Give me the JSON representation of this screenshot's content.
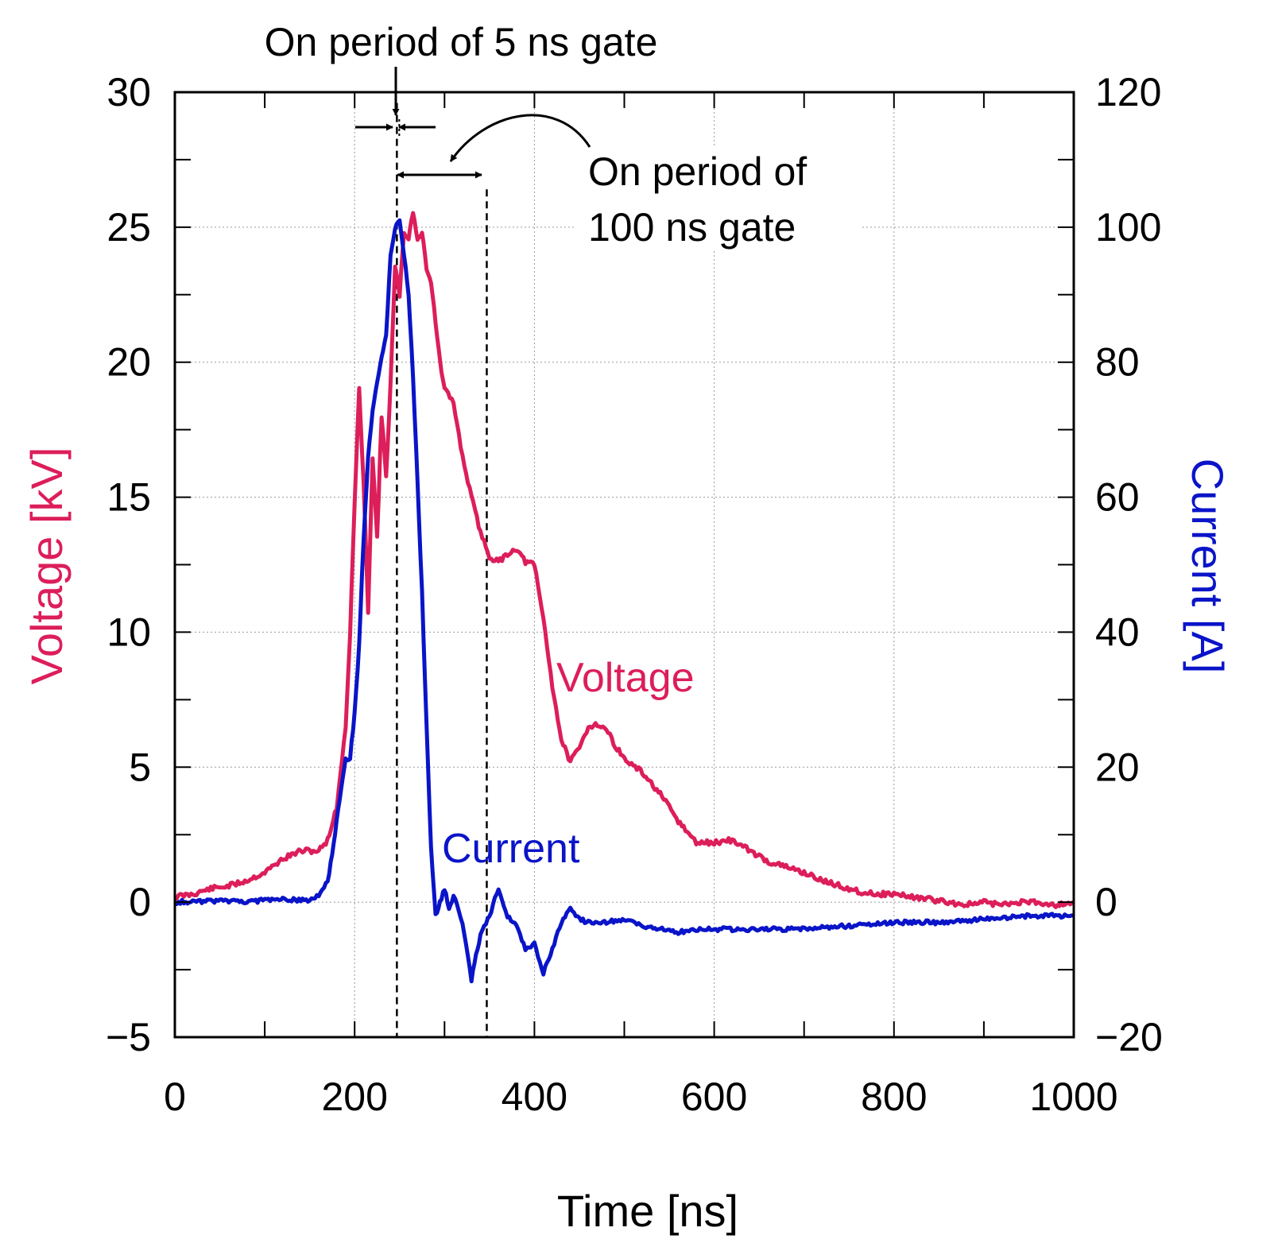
{
  "chart_data": {
    "type": "line",
    "title": "",
    "xlabel": "Time [ns]",
    "ylabel_left": "Voltage [kV]",
    "ylabel_right": "Current [A]",
    "xlim": [
      0,
      1000
    ],
    "ylim_left": [
      -5,
      30
    ],
    "ylim_right": [
      -20,
      120
    ],
    "x_ticks": [
      0,
      200,
      400,
      600,
      800,
      1000
    ],
    "x_tick_labels": [
      "0",
      "200",
      "400",
      "600",
      "800",
      "1000"
    ],
    "y_left_ticks": [
      -5,
      0,
      5,
      10,
      15,
      20,
      25,
      30
    ],
    "y_left_tick_labels": [
      "−5",
      "0",
      "5",
      "10",
      "15",
      "20",
      "25",
      "30"
    ],
    "y_right_ticks": [
      -20,
      0,
      20,
      40,
      60,
      80,
      100,
      120
    ],
    "y_right_tick_labels": [
      "−20",
      "0",
      "20",
      "40",
      "60",
      "80",
      "100",
      "120"
    ],
    "grid": true,
    "colors": {
      "voltage": "#dc1e5a",
      "current": "#0a14c8",
      "axis": "#000000"
    },
    "series": [
      {
        "name": "Voltage",
        "axis": "left",
        "x": [
          0,
          20,
          40,
          60,
          80,
          100,
          120,
          140,
          160,
          170,
          180,
          190,
          195,
          200,
          205,
          210,
          215,
          220,
          225,
          230,
          235,
          240,
          245,
          250,
          255,
          260,
          265,
          270,
          275,
          280,
          285,
          290,
          295,
          300,
          310,
          320,
          330,
          340,
          350,
          360,
          370,
          380,
          390,
          400,
          410,
          420,
          430,
          440,
          450,
          460,
          470,
          480,
          490,
          500,
          520,
          540,
          560,
          580,
          600,
          620,
          640,
          660,
          680,
          700,
          720,
          740,
          760,
          780,
          800,
          820,
          840,
          860,
          880,
          900,
          920,
          940,
          960,
          980,
          1000
        ],
        "values": [
          0.2,
          0.3,
          0.5,
          0.6,
          0.8,
          1.1,
          1.6,
          1.9,
          1.9,
          2.3,
          3.5,
          6.5,
          10.0,
          14.8,
          19.0,
          15.5,
          10.8,
          16.5,
          13.5,
          18.0,
          15.8,
          19.2,
          23.5,
          22.5,
          24.8,
          24.6,
          25.6,
          24.5,
          24.8,
          23.5,
          23.0,
          21.5,
          20.0,
          19.0,
          18.5,
          16.5,
          15.0,
          13.7,
          12.8,
          12.6,
          12.9,
          13.1,
          12.6,
          12.5,
          10.5,
          8.0,
          6.0,
          5.2,
          5.7,
          6.5,
          6.6,
          6.4,
          5.8,
          5.3,
          4.8,
          4.0,
          3.0,
          2.2,
          2.2,
          2.3,
          1.9,
          1.5,
          1.3,
          1.1,
          0.8,
          0.6,
          0.4,
          0.3,
          0.3,
          0.2,
          0.1,
          0.0,
          -0.1,
          0.0,
          -0.1,
          0.0,
          0.0,
          -0.1,
          0.0
        ]
      },
      {
        "name": "Current",
        "axis": "right",
        "x": [
          0,
          40,
          80,
          120,
          150,
          160,
          170,
          175,
          180,
          185,
          190,
          195,
          200,
          205,
          210,
          215,
          220,
          225,
          230,
          235,
          240,
          245,
          250,
          255,
          260,
          265,
          270,
          275,
          280,
          285,
          290,
          295,
          300,
          305,
          310,
          320,
          330,
          335,
          340,
          350,
          360,
          370,
          380,
          390,
          400,
          410,
          420,
          430,
          440,
          450,
          460,
          480,
          500,
          520,
          540,
          560,
          580,
          600,
          650,
          700,
          750,
          800,
          850,
          900,
          950,
          1000
        ],
        "values": [
          0,
          0.2,
          0.1,
          0.4,
          0.3,
          1.0,
          3.0,
          7.0,
          12.0,
          17.0,
          21.0,
          21.5,
          28.0,
          38.0,
          54.0,
          66.0,
          73.0,
          77.0,
          81.0,
          84.0,
          96.0,
          100.0,
          101.0,
          96.0,
          90.0,
          78.0,
          62.0,
          46.0,
          26.0,
          8.0,
          -2.0,
          0.0,
          2.0,
          -1.0,
          1.0,
          -3.0,
          -11.5,
          -8.0,
          -5.0,
          -2.0,
          2.0,
          -2.0,
          -3.5,
          -7.0,
          -6.0,
          -10.5,
          -7.0,
          -3.0,
          -1.0,
          -2.5,
          -3.0,
          -3.0,
          -2.5,
          -3.5,
          -4.0,
          -4.5,
          -4.0,
          -4.0,
          -4.0,
          -4.0,
          -3.5,
          -3.0,
          -3.0,
          -2.5,
          -2.0,
          -2.0
        ]
      }
    ],
    "annotations": {
      "gate5_label": "On period of 5 ns gate",
      "gate100_line1": "On period of",
      "gate100_line2": "100 ns gate",
      "gate5_time": 247,
      "gate100_start": 247,
      "gate100_end": 347
    }
  }
}
